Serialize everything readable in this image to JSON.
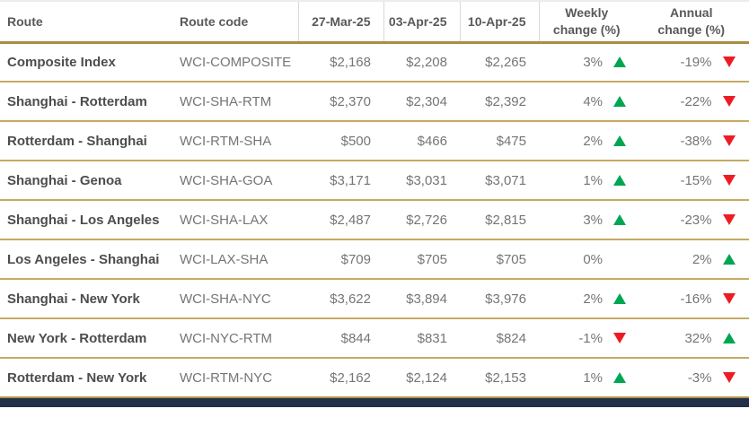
{
  "colors": {
    "gold_header_line": "#a98e41",
    "gold_row_line": "#c5aa61",
    "up_green": "#00a651",
    "down_red": "#ed1c24",
    "bottom_bar_navy": "#233047"
  },
  "chart_data": {
    "type": "table",
    "columns": [
      {
        "label": "Route"
      },
      {
        "label": "Route code"
      },
      {
        "label": "27-Mar-25"
      },
      {
        "label": "03-Apr-25"
      },
      {
        "label": "10-Apr-25"
      },
      {
        "line1": "Weekly",
        "line2": "change (%)"
      },
      {
        "line1": "Annual",
        "line2": "change (%)"
      }
    ],
    "rows": [
      {
        "route": "Composite Index",
        "code": "WCI-COMPOSITE",
        "values": [
          "$2,168",
          "$2,208",
          "$2,265"
        ],
        "weekly": {
          "value": "3%",
          "dir": "up"
        },
        "annual": {
          "value": "-19%",
          "dir": "down"
        }
      },
      {
        "route": "Shanghai - Rotterdam",
        "code": "WCI-SHA-RTM",
        "values": [
          "$2,370",
          "$2,304",
          "$2,392"
        ],
        "weekly": {
          "value": "4%",
          "dir": "up"
        },
        "annual": {
          "value": "-22%",
          "dir": "down"
        }
      },
      {
        "route": "Rotterdam - Shanghai",
        "code": "WCI-RTM-SHA",
        "values": [
          "$500",
          "$466",
          "$475"
        ],
        "weekly": {
          "value": "2%",
          "dir": "up"
        },
        "annual": {
          "value": "-38%",
          "dir": "down"
        }
      },
      {
        "route": "Shanghai - Genoa",
        "code": "WCI-SHA-GOA",
        "values": [
          "$3,171",
          "$3,031",
          "$3,071"
        ],
        "weekly": {
          "value": "1%",
          "dir": "up"
        },
        "annual": {
          "value": "-15%",
          "dir": "down"
        }
      },
      {
        "route": "Shanghai - Los Angeles",
        "code": "WCI-SHA-LAX",
        "values": [
          "$2,487",
          "$2,726",
          "$2,815"
        ],
        "weekly": {
          "value": "3%",
          "dir": "up"
        },
        "annual": {
          "value": "-23%",
          "dir": "down"
        }
      },
      {
        "route": "Los Angeles - Shanghai",
        "code": "WCI-LAX-SHA",
        "values": [
          "$709",
          "$705",
          "$705"
        ],
        "weekly": {
          "value": "0%",
          "dir": "none"
        },
        "annual": {
          "value": "2%",
          "dir": "up"
        }
      },
      {
        "route": "Shanghai - New York",
        "code": "WCI-SHA-NYC",
        "values": [
          "$3,622",
          "$3,894",
          "$3,976"
        ],
        "weekly": {
          "value": "2%",
          "dir": "up"
        },
        "annual": {
          "value": "-16%",
          "dir": "down"
        }
      },
      {
        "route": "New York - Rotterdam",
        "code": "WCI-NYC-RTM",
        "values": [
          "$844",
          "$831",
          "$824"
        ],
        "weekly": {
          "value": "-1%",
          "dir": "down"
        },
        "annual": {
          "value": "32%",
          "dir": "up"
        }
      },
      {
        "route": "Rotterdam - New York",
        "code": "WCI-RTM-NYC",
        "values": [
          "$2,162",
          "$2,124",
          "$2,153"
        ],
        "weekly": {
          "value": "1%",
          "dir": "up"
        },
        "annual": {
          "value": "-3%",
          "dir": "down"
        }
      }
    ]
  }
}
